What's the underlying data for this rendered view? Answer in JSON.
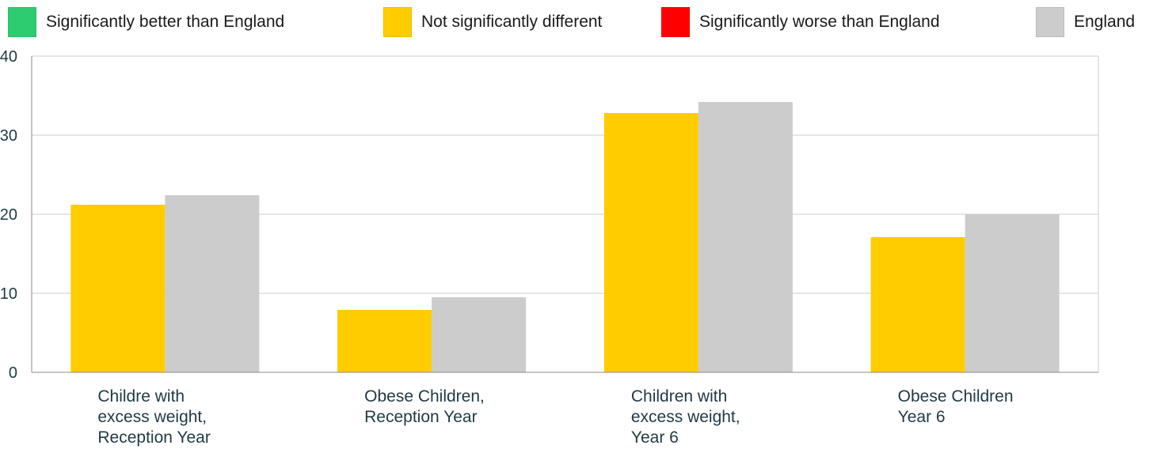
{
  "legend": [
    {
      "label": "Significantly better than England",
      "color": "#2ecc71"
    },
    {
      "label": "Not significantly different",
      "color": "#ffcc00"
    },
    {
      "label": "Significantly worse than England",
      "color": "#ff0000"
    },
    {
      "label": "England",
      "color": "#cccccc"
    }
  ],
  "chart_data": {
    "type": "bar",
    "title": "",
    "xlabel": "",
    "ylabel": "",
    "ylim": [
      0,
      40
    ],
    "yticks": [
      0,
      10,
      20,
      30,
      40
    ],
    "grid": true,
    "legend_position": "top",
    "categories": [
      [
        "Childre with",
        "excess weight,",
        "Reception Year"
      ],
      [
        "Obese Children,",
        "Reception Year"
      ],
      [
        "Children with",
        "excess weight,",
        "Year 6"
      ],
      [
        "Obese Children",
        "Year 6"
      ]
    ],
    "series": [
      {
        "values": [
          21.2,
          7.9,
          32.8,
          17.1
        ],
        "color": "#ffcc00"
      },
      {
        "name": "England",
        "values": [
          22.4,
          9.5,
          34.2,
          20.0
        ],
        "color": "#cccccc"
      }
    ]
  }
}
